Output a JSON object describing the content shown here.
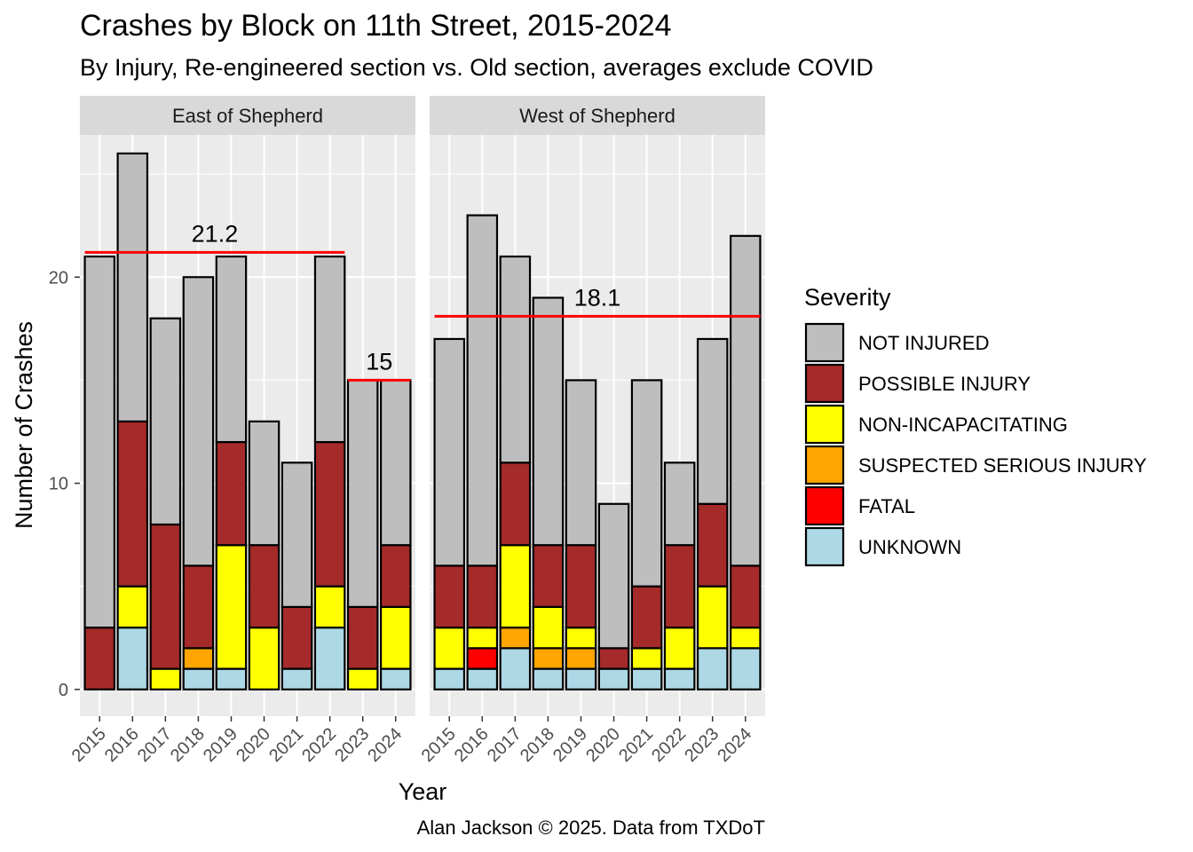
{
  "chart_data": {
    "type": "bar",
    "title": "Crashes by Block on 11th Street, 2015-2024",
    "subtitle": "By Injury, Re-engineered section vs. Old section, averages exclude COVID",
    "xlabel": "Year",
    "ylabel": "Number of Crashes",
    "caption": "Alan Jackson © 2025. Data from TXDoT",
    "stacked": true,
    "grid": true,
    "legend_position": "right",
    "ylim": [
      -1.3,
      26.9
    ],
    "y_ticks": [
      0,
      10,
      20
    ],
    "y_tick_labels": [
      "0",
      "10",
      "20"
    ],
    "categories": [
      "2015",
      "2016",
      "2017",
      "2018",
      "2019",
      "2020",
      "2021",
      "2022",
      "2023",
      "2024"
    ],
    "legend": {
      "title": "Severity",
      "entries": [
        {
          "label": "NOT INJURED",
          "color": "#BEBEBE"
        },
        {
          "label": "POSSIBLE INJURY",
          "color": "#A52A2A"
        },
        {
          "label": "NON-INCAPACITATING",
          "color": "#FFFF00"
        },
        {
          "label": "SUSPECTED SERIOUS INJURY",
          "color": "#FFA500"
        },
        {
          "label": "FATAL",
          "color": "#FF0000"
        },
        {
          "label": "UNKNOWN",
          "color": "#ADD8E6"
        }
      ]
    },
    "stack_order_bottom_to_top": [
      "UNKNOWN",
      "FATAL",
      "SUSPECTED SERIOUS INJURY",
      "NON-INCAPACITATING",
      "POSSIBLE INJURY",
      "NOT INJURED"
    ],
    "panels": [
      {
        "name": "East of Shepherd",
        "series": [
          {
            "name": "UNKNOWN",
            "values": [
              0,
              3,
              0,
              1,
              1,
              0,
              1,
              3,
              0,
              1
            ]
          },
          {
            "name": "FATAL",
            "values": [
              0,
              0,
              0,
              0,
              0,
              0,
              0,
              0,
              0,
              0
            ]
          },
          {
            "name": "SUSPECTED SERIOUS INJURY",
            "values": [
              0,
              0,
              0,
              1,
              0,
              0,
              0,
              0,
              0,
              0
            ]
          },
          {
            "name": "NON-INCAPACITATING",
            "values": [
              0,
              2,
              1,
              0,
              6,
              3,
              0,
              2,
              1,
              3
            ]
          },
          {
            "name": "POSSIBLE INJURY",
            "values": [
              3,
              8,
              7,
              4,
              5,
              4,
              3,
              7,
              3,
              3
            ]
          },
          {
            "name": "NOT INJURED",
            "values": [
              18,
              13,
              10,
              14,
              9,
              6,
              7,
              9,
              11,
              8
            ]
          }
        ],
        "averages": [
          {
            "label": "21.2",
            "value": 21.2,
            "from": "2015",
            "to": "2022"
          },
          {
            "label": "15",
            "value": 15,
            "from": "2023",
            "to": "2024"
          }
        ]
      },
      {
        "name": "West of Shepherd",
        "series": [
          {
            "name": "UNKNOWN",
            "values": [
              1,
              1,
              2,
              1,
              1,
              1,
              1,
              1,
              2,
              2
            ]
          },
          {
            "name": "FATAL",
            "values": [
              0,
              1,
              0,
              0,
              0,
              0,
              0,
              0,
              0,
              0
            ]
          },
          {
            "name": "SUSPECTED SERIOUS INJURY",
            "values": [
              0,
              0,
              1,
              1,
              1,
              0,
              0,
              0,
              0,
              0
            ]
          },
          {
            "name": "NON-INCAPACITATING",
            "values": [
              2,
              1,
              4,
              2,
              1,
              0,
              1,
              2,
              3,
              1
            ]
          },
          {
            "name": "POSSIBLE INJURY",
            "values": [
              3,
              3,
              4,
              3,
              4,
              1,
              3,
              4,
              4,
              3
            ]
          },
          {
            "name": "NOT INJURED",
            "values": [
              11,
              17,
              10,
              12,
              8,
              7,
              10,
              4,
              8,
              16
            ]
          }
        ],
        "averages": [
          {
            "label": "18.1",
            "value": 18.1,
            "from": "2015",
            "to": "2024"
          }
        ]
      }
    ]
  }
}
